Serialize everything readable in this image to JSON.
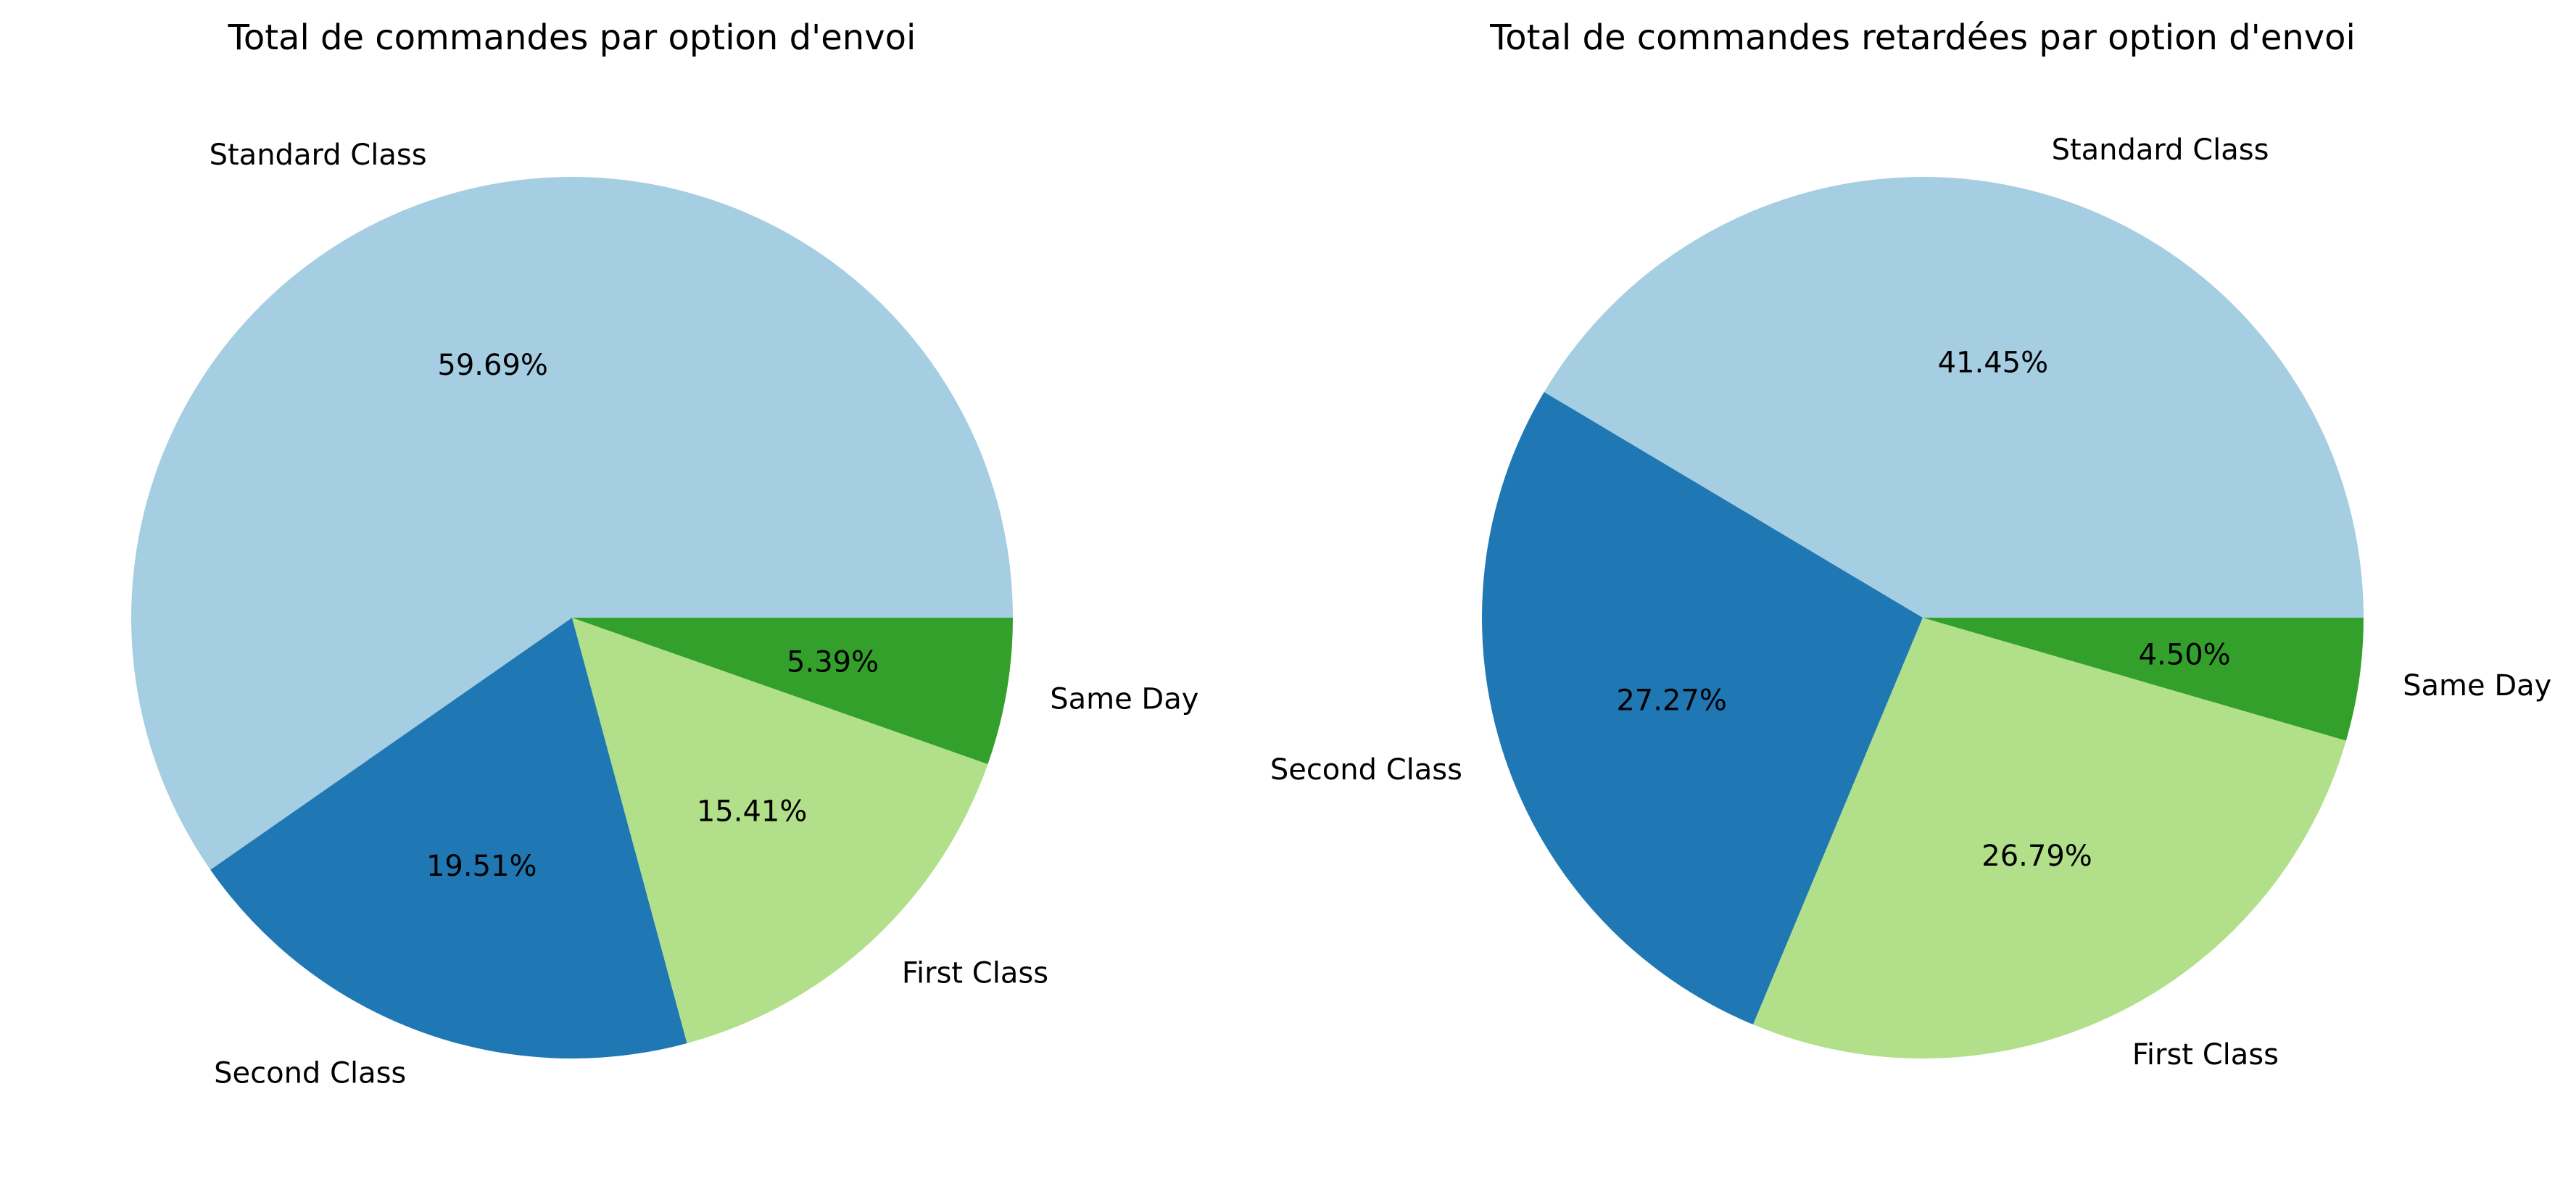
{
  "chart_data": [
    {
      "type": "pie",
      "title": "Total de commandes par option d'envoi",
      "labels": [
        "Standard Class",
        "Second Class",
        "First Class",
        "Same Day"
      ],
      "values": [
        59.69,
        19.51,
        15.41,
        5.39
      ],
      "value_labels": [
        "59.69%",
        "19.51%",
        "15.41%",
        "5.39%"
      ],
      "colors": [
        "#a6cee3",
        "#1f78b4",
        "#b2df8a",
        "#33a02c"
      ],
      "start_angle": 0,
      "direction": "counterclockwise"
    },
    {
      "type": "pie",
      "title": "Total de commandes retardées par option d'envoi",
      "labels": [
        "Standard Class",
        "Second Class",
        "First Class",
        "Same Day"
      ],
      "values": [
        41.45,
        27.27,
        26.79,
        4.5
      ],
      "value_labels": [
        "41.45%",
        "27.27%",
        "26.79%",
        "4.50%"
      ],
      "colors": [
        "#a6cee3",
        "#1f78b4",
        "#b2df8a",
        "#33a02c"
      ],
      "start_angle": 0,
      "direction": "counterclockwise"
    }
  ]
}
